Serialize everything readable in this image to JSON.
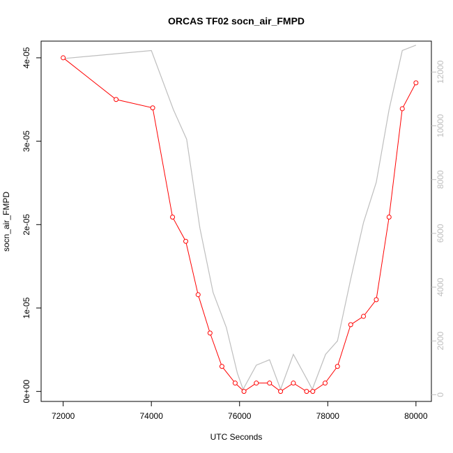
{
  "colors": {
    "primary_series": "#ff0000",
    "secondary_series": "#bebebe",
    "frame": "#000000"
  },
  "chart_data": {
    "type": "line",
    "title": "ORCAS TF02 socn_air_FMPD",
    "xlabel": "UTC Seconds",
    "ylabel": "socn_air_FMPD",
    "xlim": [
      71500,
      80350
    ],
    "ylim": [
      -1.2e-06,
      4.2e-05
    ],
    "y2lim": [
      -250,
      13150
    ],
    "x_ticks": [
      72000,
      74000,
      76000,
      78000,
      80000
    ],
    "x_tick_labels": [
      "72000",
      "74000",
      "76000",
      "78000",
      "80000"
    ],
    "y_ticks": [
      0,
      1e-05,
      2e-05,
      3e-05,
      4e-05
    ],
    "y_tick_labels": [
      "0e+00",
      "1e-05",
      "2e-05",
      "3e-05",
      "4e-05"
    ],
    "y2_ticks": [
      0,
      2000,
      4000,
      6000,
      8000,
      10000,
      12000
    ],
    "y2_tick_labels": [
      "0",
      "2000",
      "4000",
      "6000",
      "8000",
      "10000",
      "12000"
    ],
    "grid": false,
    "series": [
      {
        "axis": "left",
        "style": "line+points",
        "x": [
          72000,
          73200,
          74030,
          74480,
          74780,
          75060,
          75330,
          75600,
          75900,
          76100,
          76380,
          76680,
          76930,
          77220,
          77520,
          77660,
          77940,
          78220,
          78520,
          78810,
          79100,
          79390,
          79690,
          80000
        ],
        "values": [
          4e-05,
          3.5e-05,
          3.4e-05,
          2.09e-05,
          1.8e-05,
          1.16e-05,
          7e-06,
          3e-06,
          1e-06,
          0.0,
          1e-06,
          1e-06,
          0.0,
          1e-06,
          0.0,
          0.0,
          1e-06,
          3e-06,
          8e-06,
          9e-06,
          1.1e-05,
          2.09e-05,
          3.39e-05,
          3.7e-05
        ]
      },
      {
        "axis": "right",
        "style": "line",
        "x": [
          72000,
          74000,
          74500,
          74800,
          75100,
          75400,
          75700,
          75950,
          76080,
          76380,
          76680,
          76930,
          77220,
          77520,
          77650,
          77950,
          78220,
          78520,
          78810,
          79100,
          79390,
          79690,
          80000
        ],
        "values": [
          12500,
          12800,
          10600,
          9500,
          6200,
          3800,
          2500,
          800,
          200,
          1100,
          1300,
          200,
          1500,
          600,
          200,
          1500,
          2000,
          4300,
          6400,
          7900,
          10600,
          12800,
          13000
        ]
      }
    ]
  }
}
